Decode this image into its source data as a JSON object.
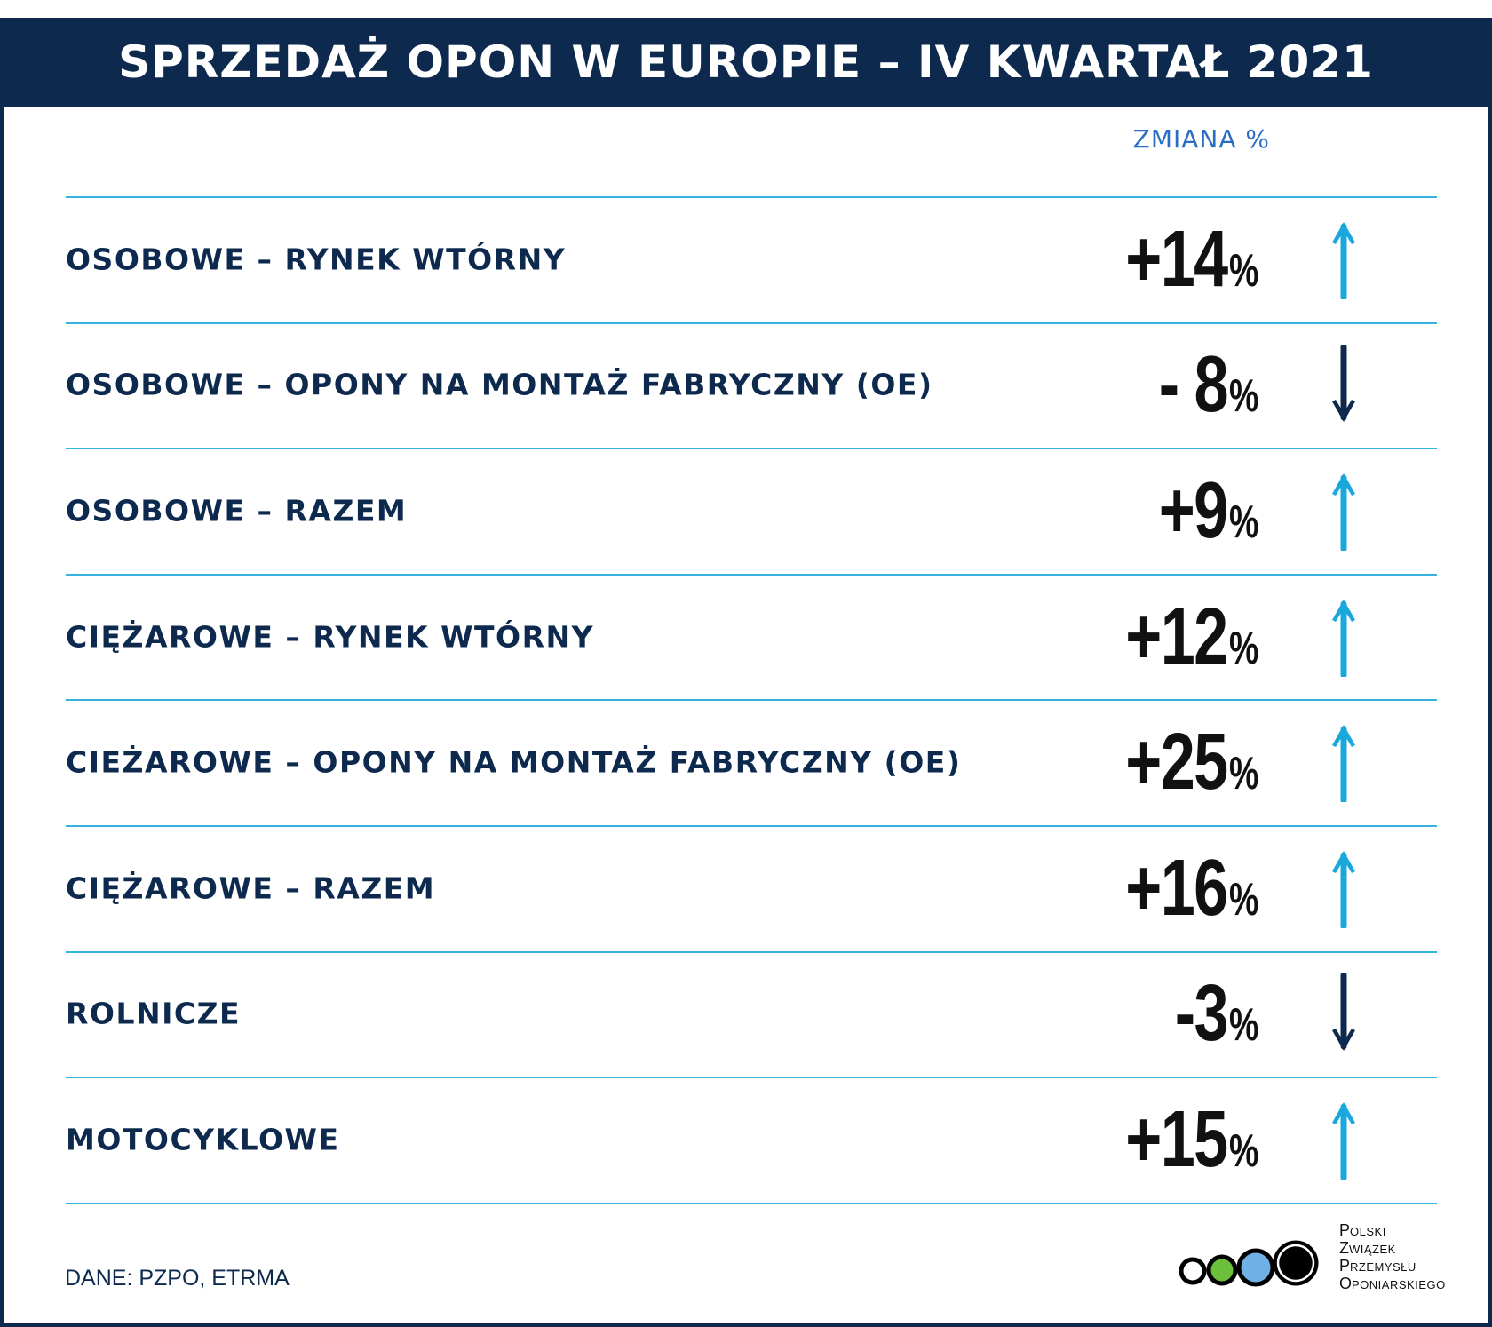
{
  "title": "SPRZEDAŻ OPON W EUROPIE – IV KWARTAŁ 2021",
  "column_header": "ZMIANA %",
  "source": "DANE: PZPO, ETRMA",
  "colors": {
    "navy": "#0d2a4e",
    "up_arrow": "#1aa8dc",
    "down_arrow": "#0d2a4e",
    "rule": "#38b3e0",
    "header_text": "#2b6cc4"
  },
  "logo": {
    "lines": [
      {
        "cap": "P",
        "rest": "OLSKI"
      },
      {
        "cap": "Z",
        "rest": "WIĄZEK"
      },
      {
        "cap": "P",
        "rest": "RZEMYSŁU"
      },
      {
        "cap": "O",
        "rest": "PONIARSKIEGO"
      }
    ],
    "circle_colors": [
      "#ffffff",
      "#6cbf3a",
      "#6fb0e6",
      "#000000"
    ]
  },
  "rows": [
    {
      "label": "OSOBOWE – RYNEK WTÓRNY",
      "value": "+14",
      "unit": "%",
      "direction": "up"
    },
    {
      "label": "OSOBOWE – OPONY NA MONTAŻ FABRYCZNY (OE)",
      "value": "- 8",
      "unit": "%",
      "direction": "down"
    },
    {
      "label": "OSOBOWE – RAZEM",
      "value": "+9",
      "unit": "%",
      "direction": "up"
    },
    {
      "label": "CIĘŻAROWE – RYNEK WTÓRNY",
      "value": "+12",
      "unit": "%",
      "direction": "up"
    },
    {
      "label": "CIEŻAROWE – OPONY NA MONTAŻ FABRYCZNY (OE)",
      "value": "+25",
      "unit": "%",
      "direction": "up"
    },
    {
      "label": "CIĘŻAROWE – RAZEM",
      "value": "+16",
      "unit": "%",
      "direction": "up"
    },
    {
      "label": "ROLNICZE",
      "value": "-3",
      "unit": "%",
      "direction": "down"
    },
    {
      "label": "MOTOCYKLOWE",
      "value": "+15",
      "unit": "%",
      "direction": "up"
    }
  ],
  "chart_data": {
    "type": "table",
    "title": "SPRZEDAŻ OPON W EUROPIE – IV KWARTAŁ 2021",
    "columns": [
      "",
      "ZMIANA %"
    ],
    "categories": [
      "OSOBOWE – RYNEK WTÓRNY",
      "OSOBOWE – OPONY NA MONTAŻ FABRYCZNY (OE)",
      "OSOBOWE – RAZEM",
      "CIĘŻAROWE – RYNEK WTÓRNY",
      "CIEŻAROWE – OPONY NA MONTAŻ FABRYCZNY (OE)",
      "CIĘŻAROWE – RAZEM",
      "ROLNICZE",
      "MOTOCYKLOWE"
    ],
    "values": [
      14,
      -8,
      9,
      12,
      25,
      16,
      -3,
      15
    ],
    "unit": "%"
  }
}
